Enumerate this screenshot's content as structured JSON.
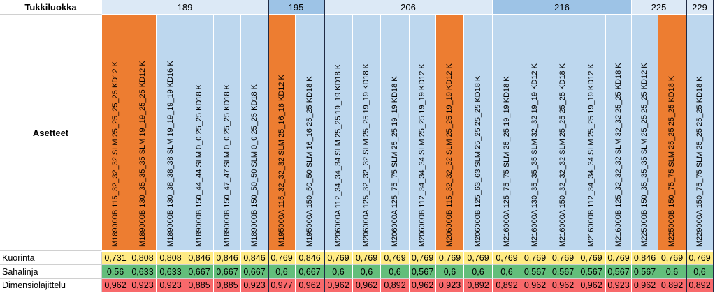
{
  "header": {
    "label": "Tukkiluokka"
  },
  "settings_label": "Asetteet",
  "groups": [
    {
      "label": "189",
      "highlight": false
    },
    {
      "label": "195",
      "highlight": true
    },
    {
      "label": "206",
      "highlight": false
    },
    {
      "label": "216",
      "highlight": true
    },
    {
      "label": "225",
      "highlight": false
    },
    {
      "label": "229",
      "highlight": false
    }
  ],
  "columns": [
    {
      "name": "M189000B 115_32_32_32 SLM 25_25_25_25 KD12 K",
      "highlight": true
    },
    {
      "name": "M189000B 130_35_35_35 SLM 19_19_25_25 KD12 K",
      "highlight": true
    },
    {
      "name": "M189000B 130_38_38_38 SLM 19_19_19_19 KD16 K",
      "highlight": false
    },
    {
      "name": "M189000B 150_44_44 SLM 0_0 25_25 KD18 K",
      "highlight": false
    },
    {
      "name": "M189000B 150_47_47 SLM 0_0 25_25 KD18 K",
      "highlight": false
    },
    {
      "name": "M189000B 150_50_50 SLM 0_0 25_25 KD18 K",
      "highlight": false
    },
    {
      "name": "M195000A 115_32_32_32 SLM 25_16_16 KD12 K",
      "highlight": true
    },
    {
      "name": "M195000A 150_50_50 SLM 16_16 25_25 KD18 K",
      "highlight": false
    },
    {
      "name": "M206000A 112_34_34_34 SLM 25_25 19_19 KD18 K",
      "highlight": false
    },
    {
      "name": "M206000A 125_32_32_32 SLM 25_25 19_19 KD18 K",
      "highlight": false
    },
    {
      "name": "M206000A 125_75_75 SLM 25_25 19_19 KD18 K",
      "highlight": false
    },
    {
      "name": "M206000B 112_34_34_34 SLM 25_25 19_19 KD12 K",
      "highlight": false
    },
    {
      "name": "M206000B 115_32_32_32 SLM 25_25 19_19 KD12 K",
      "highlight": true
    },
    {
      "name": "M206000B 125_63_63 SLM 25_25 25_25 KD18 K",
      "highlight": false
    },
    {
      "name": "M216000A 125_75_75 SLM 25_25 19_19 KD18 K",
      "highlight": false
    },
    {
      "name": "M216000A 130_35_35_35 SLM 32_32 19_19 KD12 K",
      "highlight": false
    },
    {
      "name": "M216000A 150_32_32_32 SLM 25_25 25_25 KD18 K",
      "highlight": false
    },
    {
      "name": "M216000B 112_34_34_34 SLM 25_25 19_19 KD12 K",
      "highlight": false
    },
    {
      "name": "M216000B 125_32_32_32 SLM 32_32 25_25 KD18 K",
      "highlight": false
    },
    {
      "name": "M225000B 150_35_35_35 SLM 25_25 25_25 KD12 K",
      "highlight": false
    },
    {
      "name": "M225000B 150_75_75 SLM 25_25 25_25 KD18 K",
      "highlight": true
    },
    {
      "name": "M229000A 150_75_75 SLM 25_25 25_25 KD18 K",
      "highlight": false
    }
  ],
  "rows": [
    {
      "label": "Kuorinta",
      "values": [
        "0,731",
        "0,808",
        "0,808",
        "0,846",
        "0,846",
        "0,846",
        "0,769",
        "0,846",
        "0,769",
        "0,769",
        "0,769",
        "0,769",
        "0,769",
        "0,769",
        "0,769",
        "0,769",
        "0,769",
        "0,769",
        "0,769",
        "0,846",
        "0,769",
        "0,769"
      ]
    },
    {
      "label": "Sahalinja",
      "values": [
        "0,56",
        "0,633",
        "0,633",
        "0,667",
        "0,667",
        "0,667",
        "0,6",
        "0,667",
        "0,6",
        "0,6",
        "0,6",
        "0,567",
        "0,6",
        "0,6",
        "0,6",
        "0,567",
        "0,567",
        "0,567",
        "0,567",
        "0,567",
        "0,6",
        "0,6"
      ]
    },
    {
      "label": "Dimensiolajittelu",
      "values": [
        "0,962",
        "0,923",
        "0,923",
        "0,885",
        "0,885",
        "0,923",
        "0,977",
        "0,962",
        "0,962",
        "0,962",
        "0,892",
        "0,962",
        "0,923",
        "0,892",
        "0,892",
        "0,962",
        "0,962",
        "0,962",
        "0,923",
        "0,962",
        "0,892",
        "0,892"
      ]
    }
  ],
  "colors": {
    "header_light": "#dce9f6",
    "header_highlight": "#9dc3e6",
    "column_bg": "#bdd7ee",
    "column_highlight": "#ed7d31",
    "value_yellow": "#ffeb84",
    "value_green": "#63be7b",
    "value_red": "#f8696b"
  }
}
